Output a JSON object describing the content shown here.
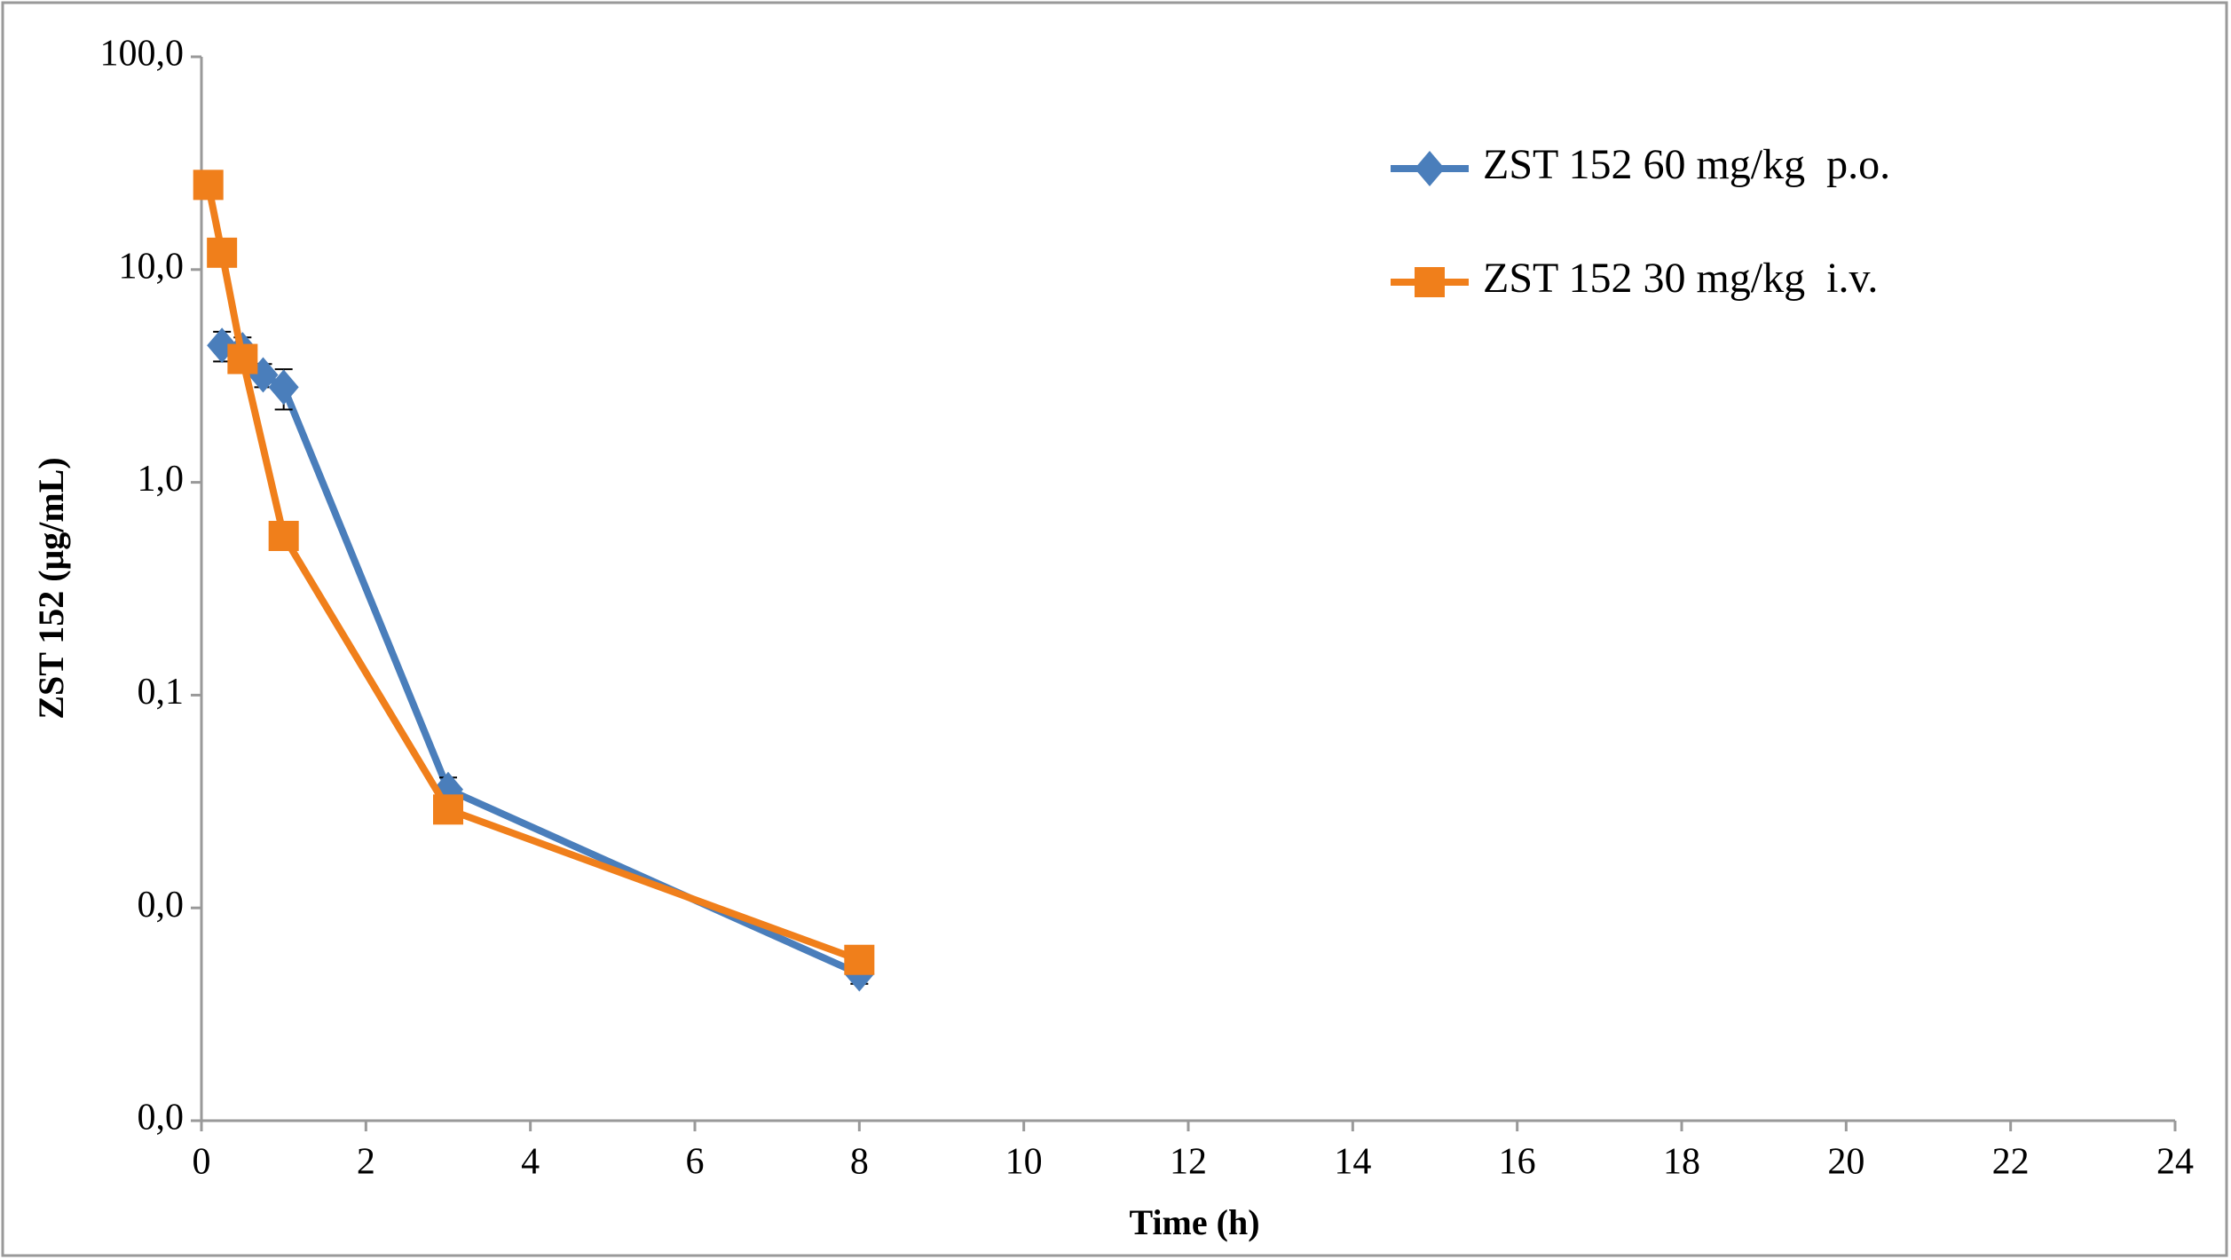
{
  "chart_data": {
    "type": "line",
    "x_label": "Time  (h)",
    "y_label": "ZST 152 (μg/mL)",
    "log_y": true,
    "grid": false,
    "legend": "upper right",
    "xlim": [
      0,
      24
    ],
    "xticks": [
      0,
      2,
      4,
      6,
      8,
      10,
      12,
      14,
      16,
      18,
      20,
      22,
      24
    ],
    "ylim": [
      0.001,
      100
    ],
    "yticks": [
      {
        "value": 0.001,
        "label": "0,0"
      },
      {
        "value": 0.01,
        "label": "0,0"
      },
      {
        "value": 0.1,
        "label": "0,1"
      },
      {
        "value": 1,
        "label": "1,0"
      },
      {
        "value": 10,
        "label": "10,0"
      },
      {
        "value": 100,
        "label": "100,0"
      }
    ],
    "series": [
      {
        "name": "ZST 152 60 mg/kg  p.o.",
        "color": "#4a7ebb",
        "marker": "diamond",
        "x": [
          0.25,
          0.5,
          0.75,
          1,
          3,
          8
        ],
        "values": [
          4.4,
          4.2,
          3.2,
          2.8,
          0.036,
          0.0049
        ],
        "errors": [
          0.7,
          0.6,
          0.4,
          0.6,
          0.005,
          0.0005
        ]
      },
      {
        "name": "ZST 152 30 mg/kg  i.v.",
        "color": "#f07f1b",
        "marker": "square",
        "x": [
          0.083,
          0.25,
          0.5,
          1,
          3,
          8
        ],
        "values": [
          25,
          12,
          3.8,
          0.56,
          0.029,
          0.0057
        ]
      }
    ]
  }
}
